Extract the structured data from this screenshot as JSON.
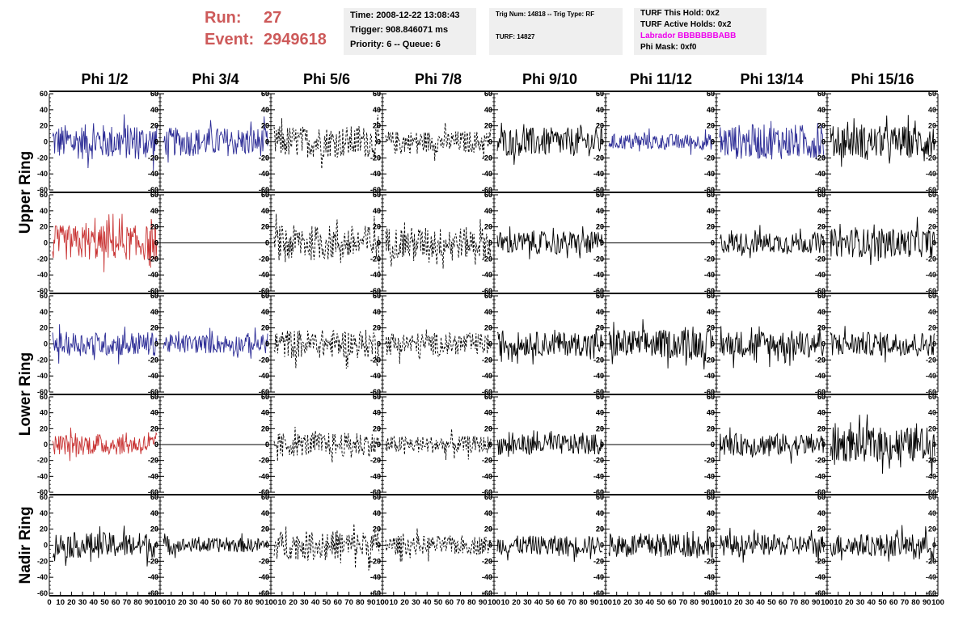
{
  "header": {
    "run_label": "Run:",
    "run_value": "27",
    "event_label": "Event:",
    "event_value": "2949618",
    "time": "Time: 2008-12-22 13:08:43",
    "trigger": "Trigger: 908.846071 ms",
    "priority": "Priority: 6 -- Queue: 6",
    "trig_num": "Trig Num: 14818 -- Trig Type: RF",
    "turf": "TURF: 14827",
    "turf_this_hold": "TURF This Hold: 0x2",
    "turf_active_holds": "TURF Active Holds: 0x2",
    "labrador": "Labrador BBBBBBBABB",
    "phi_mask": "Phi Mask: 0xf0"
  },
  "chart_data": {
    "type": "line",
    "description_grid": "5 rows x 8 columns of waveform panels",
    "columns": [
      "Phi 1/2",
      "Phi 3/4",
      "Phi 5/6",
      "Phi 7/8",
      "Phi 9/10",
      "Phi 11/12",
      "Phi 13/14",
      "Phi 15/16"
    ],
    "row_groups": [
      {
        "label": "Upper Ring",
        "rows": [
          0,
          1
        ]
      },
      {
        "label": "Lower Ring",
        "rows": [
          2,
          3
        ]
      },
      {
        "label": "Nadir Ring",
        "rows": [
          4
        ]
      }
    ],
    "ylim": [
      -60,
      60
    ],
    "yticks": [
      -60,
      -40,
      -20,
      0,
      20,
      40,
      60
    ],
    "xlim": [
      0,
      100
    ],
    "xtick_labels": [
      "0",
      "10",
      "20",
      "30",
      "40",
      "50",
      "60",
      "70",
      "80",
      "90",
      "100"
    ],
    "colors": {
      "blue": "#2c2c96",
      "red": "#c83232",
      "black": "#000000"
    },
    "panels": [
      [
        {
          "color": "blue",
          "style": "solid",
          "amplitude": 22
        },
        {
          "color": "blue",
          "style": "solid",
          "amplitude": 18
        },
        {
          "color": "black",
          "style": "dashed",
          "amplitude": 20
        },
        {
          "color": "black",
          "style": "dashed",
          "amplitude": 14
        },
        {
          "color": "black",
          "style": "solid",
          "amplitude": 18
        },
        {
          "color": "blue",
          "style": "solid",
          "amplitude": 10
        },
        {
          "color": "blue",
          "style": "solid",
          "amplitude": 22
        },
        {
          "color": "black",
          "style": "solid",
          "amplitude": 20
        }
      ],
      [
        {
          "color": "red",
          "style": "solid",
          "amplitude": 22
        },
        {
          "color": "black",
          "style": "solid",
          "amplitude": 0
        },
        {
          "color": "black",
          "style": "dashed",
          "amplitude": 22
        },
        {
          "color": "black",
          "style": "dashed",
          "amplitude": 20
        },
        {
          "color": "black",
          "style": "solid",
          "amplitude": 14
        },
        {
          "color": "black",
          "style": "solid",
          "amplitude": 0
        },
        {
          "color": "black",
          "style": "solid",
          "amplitude": 13
        },
        {
          "color": "black",
          "style": "solid",
          "amplitude": 18
        }
      ],
      [
        {
          "color": "blue",
          "style": "solid",
          "amplitude": 15
        },
        {
          "color": "blue",
          "style": "solid",
          "amplitude": 12
        },
        {
          "color": "black",
          "style": "dashed",
          "amplitude": 18
        },
        {
          "color": "black",
          "style": "dashed",
          "amplitude": 14
        },
        {
          "color": "black",
          "style": "solid",
          "amplitude": 15
        },
        {
          "color": "black",
          "style": "solid",
          "amplitude": 18
        },
        {
          "color": "black",
          "style": "solid",
          "amplitude": 17
        },
        {
          "color": "black",
          "style": "solid",
          "amplitude": 15
        }
      ],
      [
        {
          "color": "red",
          "style": "solid",
          "amplitude": 13
        },
        {
          "color": "black",
          "style": "solid",
          "amplitude": 0
        },
        {
          "color": "black",
          "style": "dashed",
          "amplitude": 15
        },
        {
          "color": "black",
          "style": "dashed",
          "amplitude": 11
        },
        {
          "color": "black",
          "style": "solid",
          "amplitude": 13
        },
        {
          "color": "black",
          "style": "solid",
          "amplitude": 0
        },
        {
          "color": "black",
          "style": "solid",
          "amplitude": 14
        },
        {
          "color": "black",
          "style": "solid",
          "amplitude": 22
        }
      ],
      [
        {
          "color": "black",
          "style": "solid",
          "amplitude": 16
        },
        {
          "color": "black",
          "style": "solid",
          "amplitude": 9
        },
        {
          "color": "black",
          "style": "dashed",
          "amplitude": 18
        },
        {
          "color": "black",
          "style": "dashed",
          "amplitude": 12
        },
        {
          "color": "black",
          "style": "solid",
          "amplitude": 12
        },
        {
          "color": "black",
          "style": "solid",
          "amplitude": 15
        },
        {
          "color": "black",
          "style": "solid",
          "amplitude": 13
        },
        {
          "color": "black",
          "style": "solid",
          "amplitude": 14
        }
      ]
    ]
  }
}
